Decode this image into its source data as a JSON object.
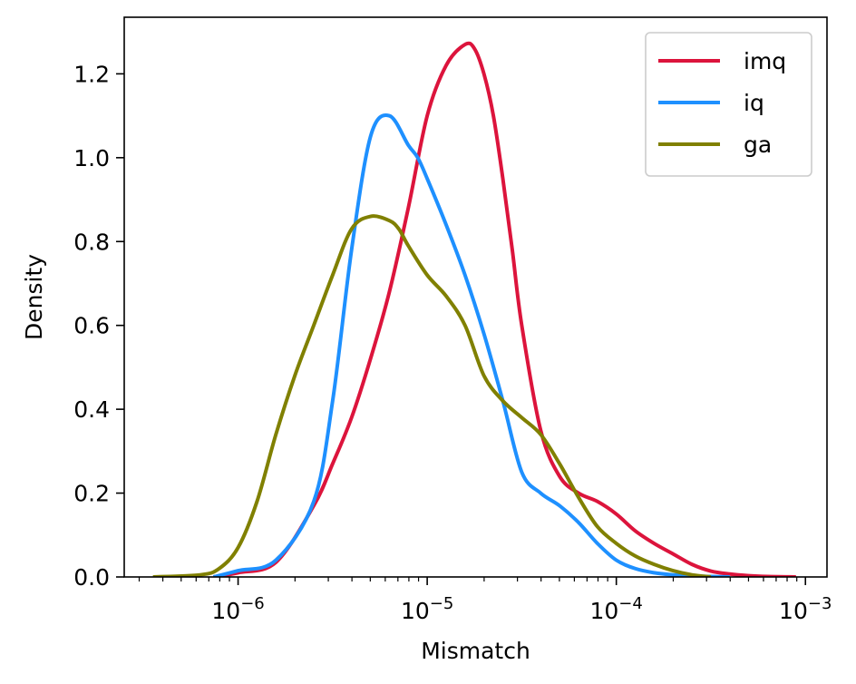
{
  "chart_data": {
    "type": "line",
    "title": "",
    "xlabel": "Mismatch",
    "ylabel": "Density",
    "xscale": "log",
    "xlim": [
      2.5e-07,
      0.0013
    ],
    "ylim": [
      0,
      1.335
    ],
    "x_ticks": [
      {
        "value": 1e-06,
        "base": "10",
        "exp": "−6"
      },
      {
        "value": 1e-05,
        "base": "10",
        "exp": "−5"
      },
      {
        "value": 0.0001,
        "base": "10",
        "exp": "−4"
      },
      {
        "value": 0.001,
        "base": "10",
        "exp": "−3"
      }
    ],
    "y_ticks": [
      {
        "value": 0.0,
        "label": "0.0"
      },
      {
        "value": 0.2,
        "label": "0.2"
      },
      {
        "value": 0.4,
        "label": "0.4"
      },
      {
        "value": 0.6,
        "label": "0.6"
      },
      {
        "value": 0.8,
        "label": "0.8"
      },
      {
        "value": 1.0,
        "label": "1.0"
      },
      {
        "value": 1.2,
        "label": "1.2"
      }
    ],
    "legend": {
      "position": "top-right",
      "entries": [
        "imq",
        "iq",
        "ga"
      ]
    },
    "series": [
      {
        "name": "imq",
        "color": "#dc143c",
        "log10_x": [
          -6.13,
          -6.0,
          -5.8,
          -5.6,
          -5.5,
          -5.4,
          -5.3,
          -5.2,
          -5.1,
          -5.0,
          -4.9,
          -4.8,
          -4.75,
          -4.7,
          -4.65,
          -4.6,
          -4.55,
          -4.5,
          -4.4,
          -4.3,
          -4.2,
          -4.1,
          -4.0,
          -3.9,
          -3.8,
          -3.7,
          -3.6,
          -3.5,
          -3.4,
          -3.3,
          -3.2,
          -3.05
        ],
        "y": [
          0.0,
          0.01,
          0.035,
          0.17,
          0.27,
          0.38,
          0.52,
          0.68,
          0.88,
          1.1,
          1.22,
          1.27,
          1.26,
          1.2,
          1.1,
          0.95,
          0.78,
          0.6,
          0.35,
          0.24,
          0.2,
          0.18,
          0.15,
          0.11,
          0.08,
          0.055,
          0.03,
          0.014,
          0.007,
          0.003,
          0.001,
          0.0
        ]
      },
      {
        "name": "iq",
        "color": "#1e90ff",
        "log10_x": [
          -6.13,
          -6.0,
          -5.8,
          -5.6,
          -5.5,
          -5.4,
          -5.3,
          -5.2,
          -5.1,
          -5.05,
          -5.0,
          -4.9,
          -4.8,
          -4.7,
          -4.6,
          -4.5,
          -4.4,
          -4.3,
          -4.2,
          -4.1,
          -4.0,
          -3.9,
          -3.8,
          -3.7,
          -3.6,
          -3.5,
          -3.4
        ],
        "y": [
          0.0,
          0.015,
          0.04,
          0.18,
          0.42,
          0.78,
          1.05,
          1.1,
          1.03,
          1.0,
          0.95,
          0.84,
          0.72,
          0.58,
          0.42,
          0.25,
          0.2,
          0.17,
          0.13,
          0.08,
          0.04,
          0.02,
          0.01,
          0.005,
          0.002,
          0.001,
          0.0
        ]
      },
      {
        "name": "ga",
        "color": "#808000",
        "log10_x": [
          -6.45,
          -6.2,
          -6.1,
          -6.0,
          -5.9,
          -5.8,
          -5.7,
          -5.6,
          -5.5,
          -5.4,
          -5.3,
          -5.2,
          -5.15,
          -5.1,
          -5.0,
          -4.9,
          -4.8,
          -4.7,
          -4.6,
          -4.5,
          -4.4,
          -4.3,
          -4.2,
          -4.1,
          -4.0,
          -3.9,
          -3.8,
          -3.7,
          -3.6,
          -3.5
        ],
        "y": [
          0.0,
          0.005,
          0.02,
          0.07,
          0.18,
          0.34,
          0.48,
          0.6,
          0.72,
          0.83,
          0.86,
          0.85,
          0.83,
          0.79,
          0.72,
          0.67,
          0.6,
          0.48,
          0.42,
          0.38,
          0.34,
          0.27,
          0.19,
          0.12,
          0.08,
          0.05,
          0.03,
          0.015,
          0.005,
          0.0
        ]
      }
    ]
  }
}
